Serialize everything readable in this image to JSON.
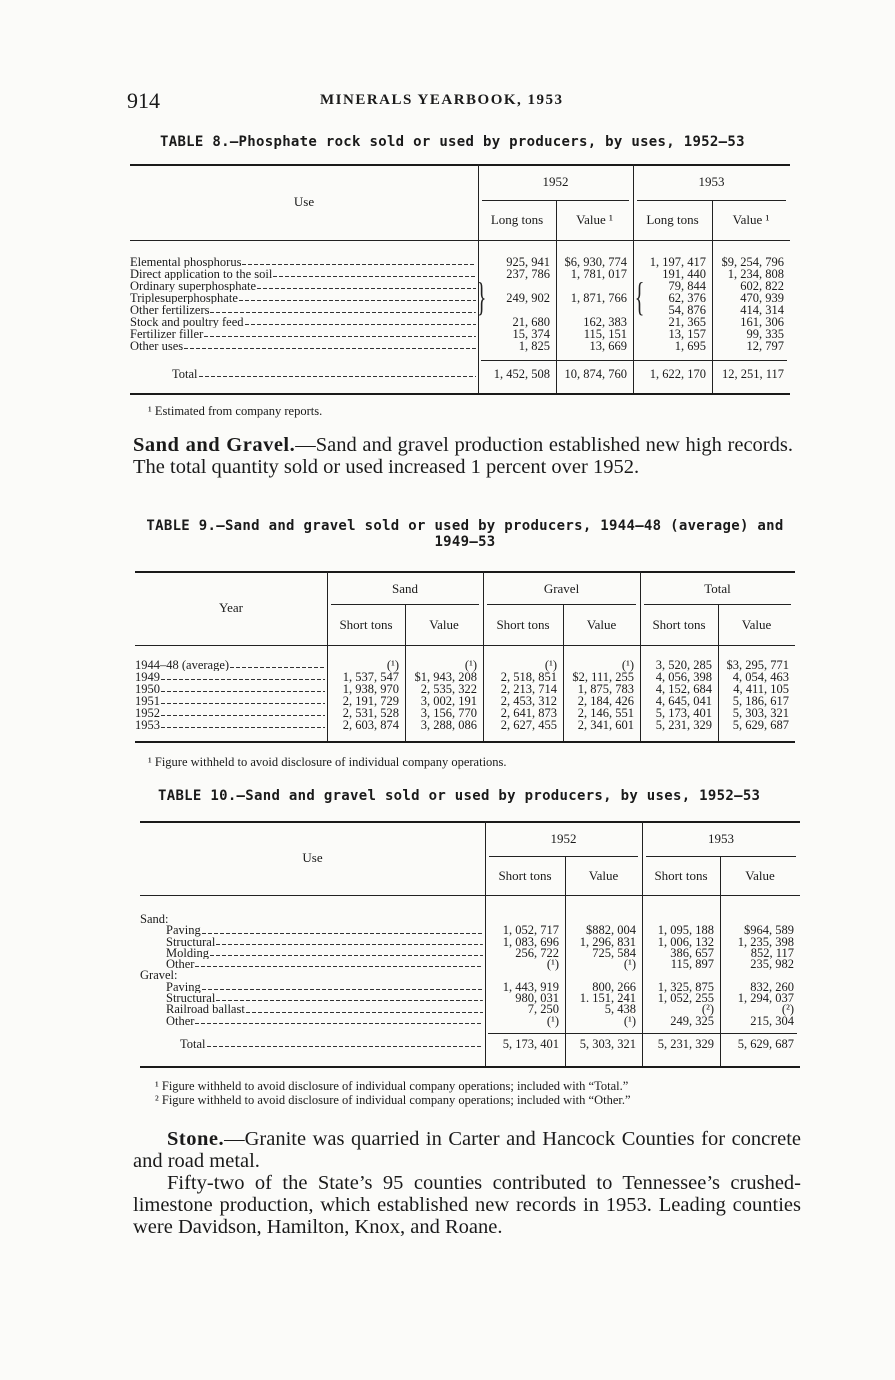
{
  "page_number": "914",
  "running_head": "MINERALS YEARBOOK, 1953",
  "table8": {
    "title": "TABLE 8.—Phosphate rock sold or used by producers, by uses, 1952–53",
    "use_header": "Use",
    "years": [
      "1952",
      "1953"
    ],
    "subheaders": [
      "Long tons",
      "Value ¹",
      "Long tons",
      "Value ¹"
    ],
    "rows": [
      {
        "label": "Elemental phosphorus",
        "values": [
          "925, 941",
          "$6, 930, 774",
          "1, 197, 417",
          "$9, 254, 796"
        ]
      },
      {
        "label": "Direct application to the soil",
        "values": [
          "237, 786",
          "1, 781, 017",
          "191, 440",
          "1, 234, 808"
        ]
      },
      {
        "label": "Ordinary superphosphate",
        "values": [
          "",
          "",
          "79, 844",
          "602, 822"
        ]
      },
      {
        "label": "Triplesuperphosphate",
        "values": [
          "249, 902",
          "1, 871, 766",
          "62, 376",
          "470, 939"
        ]
      },
      {
        "label": "Other fertilizers",
        "values": [
          "",
          "",
          "54, 876",
          "414, 314"
        ]
      },
      {
        "label": "Stock and poultry feed",
        "values": [
          "21, 680",
          "162, 383",
          "21, 365",
          "161, 306"
        ]
      },
      {
        "label": "Fertilizer filler",
        "values": [
          "15, 374",
          "115, 151",
          "13, 157",
          "99, 335"
        ]
      },
      {
        "label": "Other uses",
        "values": [
          "1, 825",
          "13, 669",
          "1, 695",
          "12, 797"
        ]
      }
    ],
    "total": {
      "label": "Total",
      "values": [
        "1, 452, 508",
        "10, 874, 760",
        "1, 622, 170",
        "12, 251, 117"
      ]
    },
    "footnotes": [
      "¹ Estimated from company reports."
    ]
  },
  "sand_gravel_paragraph": {
    "heading": "Sand and Gravel.",
    "text": "—Sand and gravel production established new high records. The total quantity sold or used increased 1 percent over 1952."
  },
  "table9": {
    "title_line1": "TABLE 9.—Sand and gravel sold or used by producers, 1944–48 (average) and",
    "title_line2": "1949–53",
    "year_header": "Year",
    "groups": [
      "Sand",
      "Gravel",
      "Total"
    ],
    "subheaders": [
      "Short tons",
      "Value",
      "Short tons",
      "Value",
      "Short tons",
      "Value"
    ],
    "rows": [
      {
        "label": "1944–48 (average)",
        "values": [
          "(¹)",
          "(¹)",
          "(¹)",
          "(¹)",
          "3, 520, 285",
          "$3, 295, 771"
        ]
      },
      {
        "label": "1949",
        "values": [
          "1, 537, 547",
          "$1, 943, 208",
          "2, 518, 851",
          "$2, 111, 255",
          "4, 056, 398",
          "4, 054, 463"
        ]
      },
      {
        "label": "1950",
        "values": [
          "1, 938, 970",
          "2, 535, 322",
          "2, 213, 714",
          "1, 875, 783",
          "4, 152, 684",
          "4, 411, 105"
        ]
      },
      {
        "label": "1951",
        "values": [
          "2, 191, 729",
          "3, 002, 191",
          "2, 453, 312",
          "2, 184, 426",
          "4, 645, 041",
          "5, 186, 617"
        ]
      },
      {
        "label": "1952",
        "values": [
          "2, 531, 528",
          "3, 156, 770",
          "2, 641, 873",
          "2, 146, 551",
          "5, 173, 401",
          "5, 303, 321"
        ]
      },
      {
        "label": "1953",
        "values": [
          "2, 603, 874",
          "3, 288, 086",
          "2, 627, 455",
          "2, 341, 601",
          "5, 231, 329",
          "5, 629, 687"
        ]
      }
    ],
    "footnotes": [
      "¹ Figure withheld to avoid disclosure of individual company operations."
    ]
  },
  "table10": {
    "title": "TABLE 10.—Sand and gravel sold or used by producers, by uses, 1952–53",
    "use_header": "Use",
    "years": [
      "1952",
      "1953"
    ],
    "subheaders": [
      "Short tons",
      "Value",
      "Short tons",
      "Value"
    ],
    "rows": [
      {
        "label": "Sand:",
        "indent": 0,
        "values": [
          "",
          "",
          "",
          ""
        ]
      },
      {
        "label": "Paving",
        "indent": 1,
        "values": [
          "1, 052, 717",
          "$882, 004",
          "1, 095, 188",
          "$964, 589"
        ]
      },
      {
        "label": "Structural",
        "indent": 1,
        "values": [
          "1, 083, 696",
          "1, 296, 831",
          "1, 006, 132",
          "1, 235, 398"
        ]
      },
      {
        "label": "Molding",
        "indent": 1,
        "values": [
          "256, 722",
          "725, 584",
          "386, 657",
          "852, 117"
        ]
      },
      {
        "label": "Other",
        "indent": 1,
        "values": [
          "(¹)",
          "(¹)",
          "115, 897",
          "235, 982"
        ]
      },
      {
        "label": "Gravel:",
        "indent": 0,
        "values": [
          "",
          "",
          "",
          ""
        ]
      },
      {
        "label": "Paving",
        "indent": 1,
        "values": [
          "1, 443, 919",
          "800, 266",
          "1, 325, 875",
          "832, 260"
        ]
      },
      {
        "label": "Structural",
        "indent": 1,
        "values": [
          "980, 031",
          "1. 151, 241",
          "1, 052, 255",
          "1, 294, 037"
        ]
      },
      {
        "label": "Railroad ballast",
        "indent": 1,
        "values": [
          "7, 250",
          "5, 438",
          "(²)",
          "(²)"
        ]
      },
      {
        "label": "Other",
        "indent": 1,
        "values": [
          "(¹)",
          "(¹)",
          "249, 325",
          "215, 304"
        ]
      }
    ],
    "total": {
      "label": "Total",
      "values": [
        "5, 173, 401",
        "5, 303, 321",
        "5, 231, 329",
        "5, 629, 687"
      ]
    },
    "footnotes": [
      "¹ Figure withheld to avoid disclosure of individual company operations; included with “Total.”",
      "² Figure withheld to avoid disclosure of individual company operations; included with “Other.”"
    ]
  },
  "stone_paragraph": {
    "heading": "Stone.",
    "text1": "—Granite was quarried in Carter and Hancock Counties for concrete and road metal.",
    "text2": "Fifty-two of the State’s 95 counties contributed to Tennessee’s crushed-limestone production, which established new records in 1953. Leading counties were Davidson, Hamilton, Knox, and Roane."
  }
}
